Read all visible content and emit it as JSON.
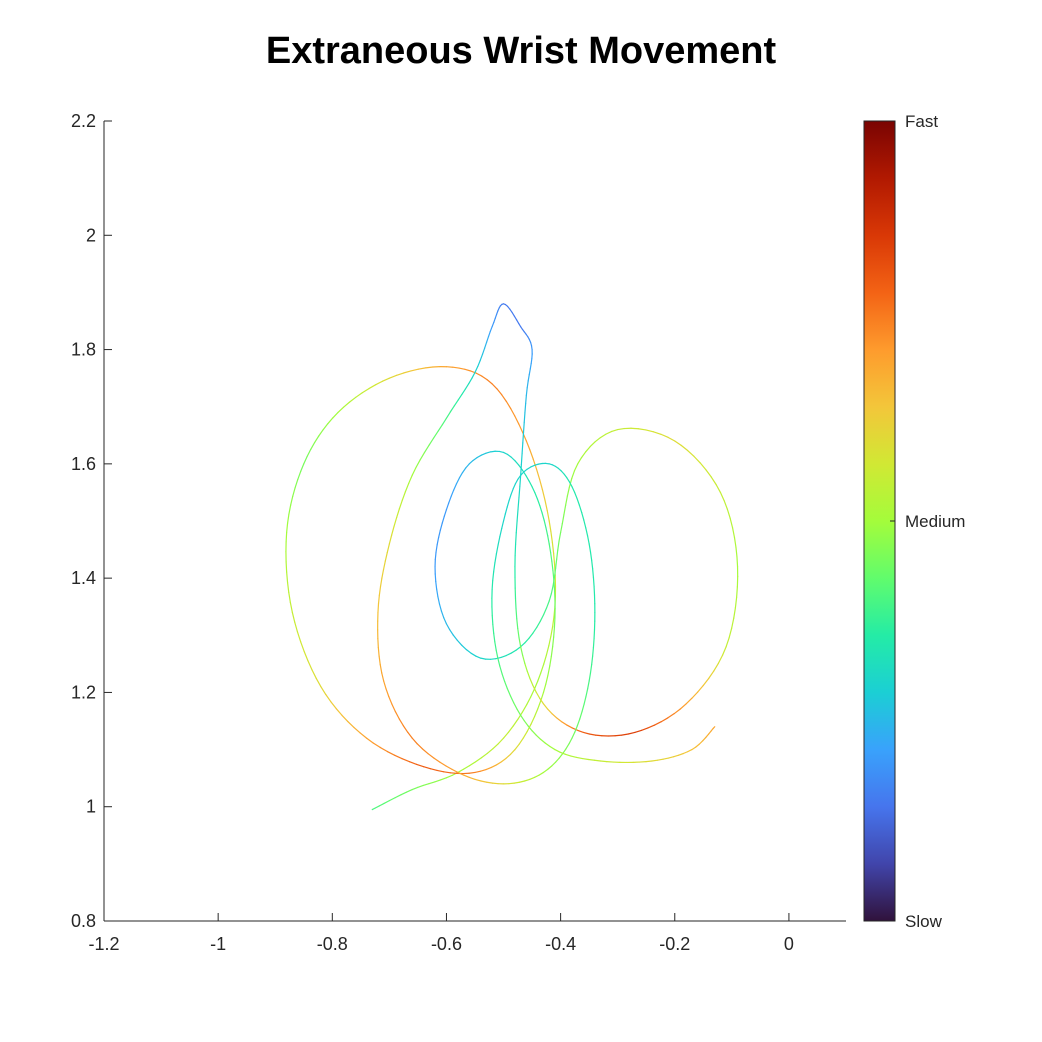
{
  "chart_data": {
    "type": "line",
    "title": "Extraneous Wrist Movement",
    "xlabel": "",
    "ylabel": "",
    "xlim": [
      -1.2,
      0.1
    ],
    "ylim": [
      0.8,
      2.2
    ],
    "xticks": [
      "-1.2",
      "-1",
      "-0.8",
      "-0.6",
      "-0.4",
      "-0.2",
      "0"
    ],
    "xtick_values": [
      -1.2,
      -1.0,
      -0.8,
      -0.6,
      -0.4,
      -0.2,
      0.0
    ],
    "yticks": [
      "0.8",
      "1",
      "1.2",
      "1.4",
      "1.6",
      "1.8",
      "2",
      "2.2"
    ],
    "ytick_values": [
      0.8,
      1.0,
      1.2,
      1.4,
      1.6,
      1.8,
      2.0,
      2.2
    ],
    "grid": false,
    "colorbar": {
      "labels": [
        "Slow",
        "Medium",
        "Fast"
      ],
      "positions": [
        0.0,
        0.5,
        1.0
      ],
      "colormap": [
        "#30123b",
        "#4145ab",
        "#4675ed",
        "#39a2fc",
        "#1bcfd4",
        "#24eca6",
        "#61fc6c",
        "#a4fc3b",
        "#d1e834",
        "#f3c63a",
        "#fe9b2d",
        "#f36315",
        "#d93806",
        "#b11901",
        "#7a0402"
      ]
    },
    "trajectory": {
      "description_values": "wrist path (x,y) with speed 0-1",
      "points": [
        [
          -0.73,
          0.995,
          0.4
        ],
        [
          -0.66,
          1.03,
          0.45
        ],
        [
          -0.58,
          1.06,
          0.5
        ],
        [
          -0.5,
          1.12,
          0.55
        ],
        [
          -0.44,
          1.22,
          0.5
        ],
        [
          -0.41,
          1.35,
          0.55
        ],
        [
          -0.42,
          1.5,
          0.6
        ],
        [
          -0.46,
          1.64,
          0.7
        ],
        [
          -0.52,
          1.74,
          0.75
        ],
        [
          -0.6,
          1.77,
          0.7
        ],
        [
          -0.7,
          1.75,
          0.6
        ],
        [
          -0.79,
          1.69,
          0.5
        ],
        [
          -0.85,
          1.6,
          0.45
        ],
        [
          -0.88,
          1.48,
          0.5
        ],
        [
          -0.87,
          1.34,
          0.55
        ],
        [
          -0.82,
          1.21,
          0.6
        ],
        [
          -0.74,
          1.12,
          0.7
        ],
        [
          -0.64,
          1.07,
          0.8
        ],
        [
          -0.55,
          1.06,
          0.75
        ],
        [
          -0.48,
          1.1,
          0.6
        ],
        [
          -0.43,
          1.2,
          0.5
        ],
        [
          -0.41,
          1.33,
          0.45
        ],
        [
          -0.42,
          1.46,
          0.4
        ],
        [
          -0.45,
          1.56,
          0.35
        ],
        [
          -0.5,
          1.62,
          0.3
        ],
        [
          -0.56,
          1.6,
          0.25
        ],
        [
          -0.6,
          1.52,
          0.2
        ],
        [
          -0.62,
          1.42,
          0.2
        ],
        [
          -0.6,
          1.32,
          0.25
        ],
        [
          -0.54,
          1.26,
          0.3
        ],
        [
          -0.47,
          1.28,
          0.35
        ],
        [
          -0.42,
          1.36,
          0.4
        ],
        [
          -0.4,
          1.48,
          0.45
        ],
        [
          -0.37,
          1.6,
          0.5
        ],
        [
          -0.3,
          1.66,
          0.55
        ],
        [
          -0.2,
          1.64,
          0.6
        ],
        [
          -0.12,
          1.55,
          0.55
        ],
        [
          -0.09,
          1.42,
          0.5
        ],
        [
          -0.11,
          1.28,
          0.55
        ],
        [
          -0.18,
          1.18,
          0.7
        ],
        [
          -0.27,
          1.13,
          0.85
        ],
        [
          -0.36,
          1.13,
          0.8
        ],
        [
          -0.43,
          1.18,
          0.6
        ],
        [
          -0.47,
          1.28,
          0.45
        ],
        [
          -0.48,
          1.42,
          0.35
        ],
        [
          -0.47,
          1.58,
          0.3
        ],
        [
          -0.46,
          1.72,
          0.25
        ],
        [
          -0.45,
          1.8,
          0.2
        ],
        [
          -0.47,
          1.84,
          0.15
        ],
        [
          -0.5,
          1.88,
          0.15
        ],
        [
          -0.52,
          1.84,
          0.2
        ],
        [
          -0.55,
          1.76,
          0.3
        ],
        [
          -0.6,
          1.68,
          0.4
        ],
        [
          -0.66,
          1.58,
          0.5
        ],
        [
          -0.7,
          1.46,
          0.6
        ],
        [
          -0.72,
          1.34,
          0.65
        ],
        [
          -0.71,
          1.22,
          0.7
        ],
        [
          -0.66,
          1.12,
          0.75
        ],
        [
          -0.58,
          1.06,
          0.7
        ],
        [
          -0.5,
          1.04,
          0.6
        ],
        [
          -0.43,
          1.06,
          0.5
        ],
        [
          -0.38,
          1.12,
          0.45
        ],
        [
          -0.35,
          1.22,
          0.4
        ],
        [
          -0.34,
          1.34,
          0.35
        ],
        [
          -0.35,
          1.46,
          0.35
        ],
        [
          -0.38,
          1.56,
          0.35
        ],
        [
          -0.42,
          1.6,
          0.3
        ],
        [
          -0.47,
          1.58,
          0.3
        ],
        [
          -0.5,
          1.5,
          0.3
        ],
        [
          -0.52,
          1.38,
          0.35
        ],
        [
          -0.51,
          1.26,
          0.4
        ],
        [
          -0.47,
          1.16,
          0.45
        ],
        [
          -0.41,
          1.1,
          0.5
        ],
        [
          -0.33,
          1.08,
          0.55
        ],
        [
          -0.24,
          1.08,
          0.6
        ],
        [
          -0.17,
          1.1,
          0.65
        ],
        [
          -0.13,
          1.14,
          0.7
        ]
      ]
    }
  }
}
